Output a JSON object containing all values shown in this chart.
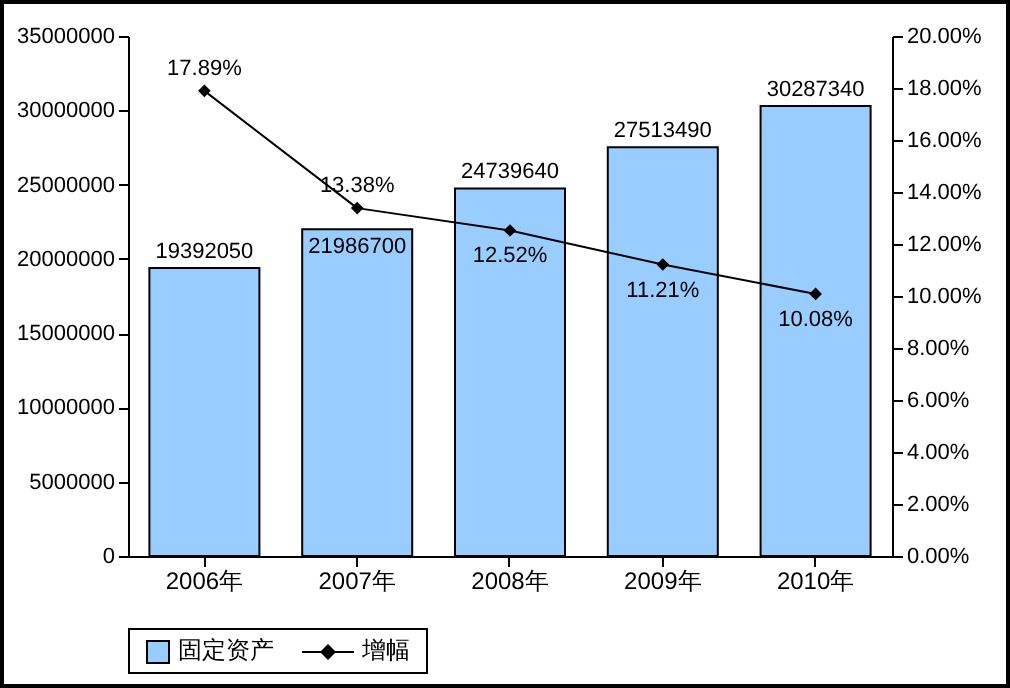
{
  "chart_data": {
    "type": "bar",
    "categories": [
      "2006年",
      "2007年",
      "2008年",
      "2009年",
      "2010年"
    ],
    "series": [
      {
        "name": "固定资产",
        "color": "#99ccff",
        "values": [
          19392050,
          21986700,
          24739640,
          27513490,
          30287340
        ],
        "value_labels": [
          "19392050",
          "21986700",
          "24739640",
          "27513490",
          "30287340"
        ]
      },
      {
        "name": "增幅",
        "type": "line",
        "axis": "y2",
        "color": "#000000",
        "values": [
          17.89,
          13.38,
          12.52,
          11.21,
          10.08
        ],
        "value_labels": [
          "17.89%",
          "13.38%",
          "12.52%",
          "11.21%",
          "10.08%"
        ]
      }
    ],
    "ylim": [
      0,
      35000000
    ],
    "yticks": [
      0,
      5000000,
      10000000,
      15000000,
      20000000,
      25000000,
      30000000,
      35000000
    ],
    "y2lim": [
      0,
      20
    ],
    "y2ticks": [
      {
        "value": 0,
        "label": "0.00%"
      },
      {
        "value": 2,
        "label": "2.00%"
      },
      {
        "value": 4,
        "label": "4.00%"
      },
      {
        "value": 6,
        "label": "6.00%"
      },
      {
        "value": 8,
        "label": "8.00%"
      },
      {
        "value": 10,
        "label": "10.00%"
      },
      {
        "value": 12,
        "label": "12.00%"
      },
      {
        "value": 14,
        "label": "14.00%"
      },
      {
        "value": 16,
        "label": "16.00%"
      },
      {
        "value": 18,
        "label": "18.00%"
      },
      {
        "value": 20,
        "label": "20.00%"
      }
    ],
    "legend": "bottom",
    "marker": "diamond",
    "grid": false
  }
}
